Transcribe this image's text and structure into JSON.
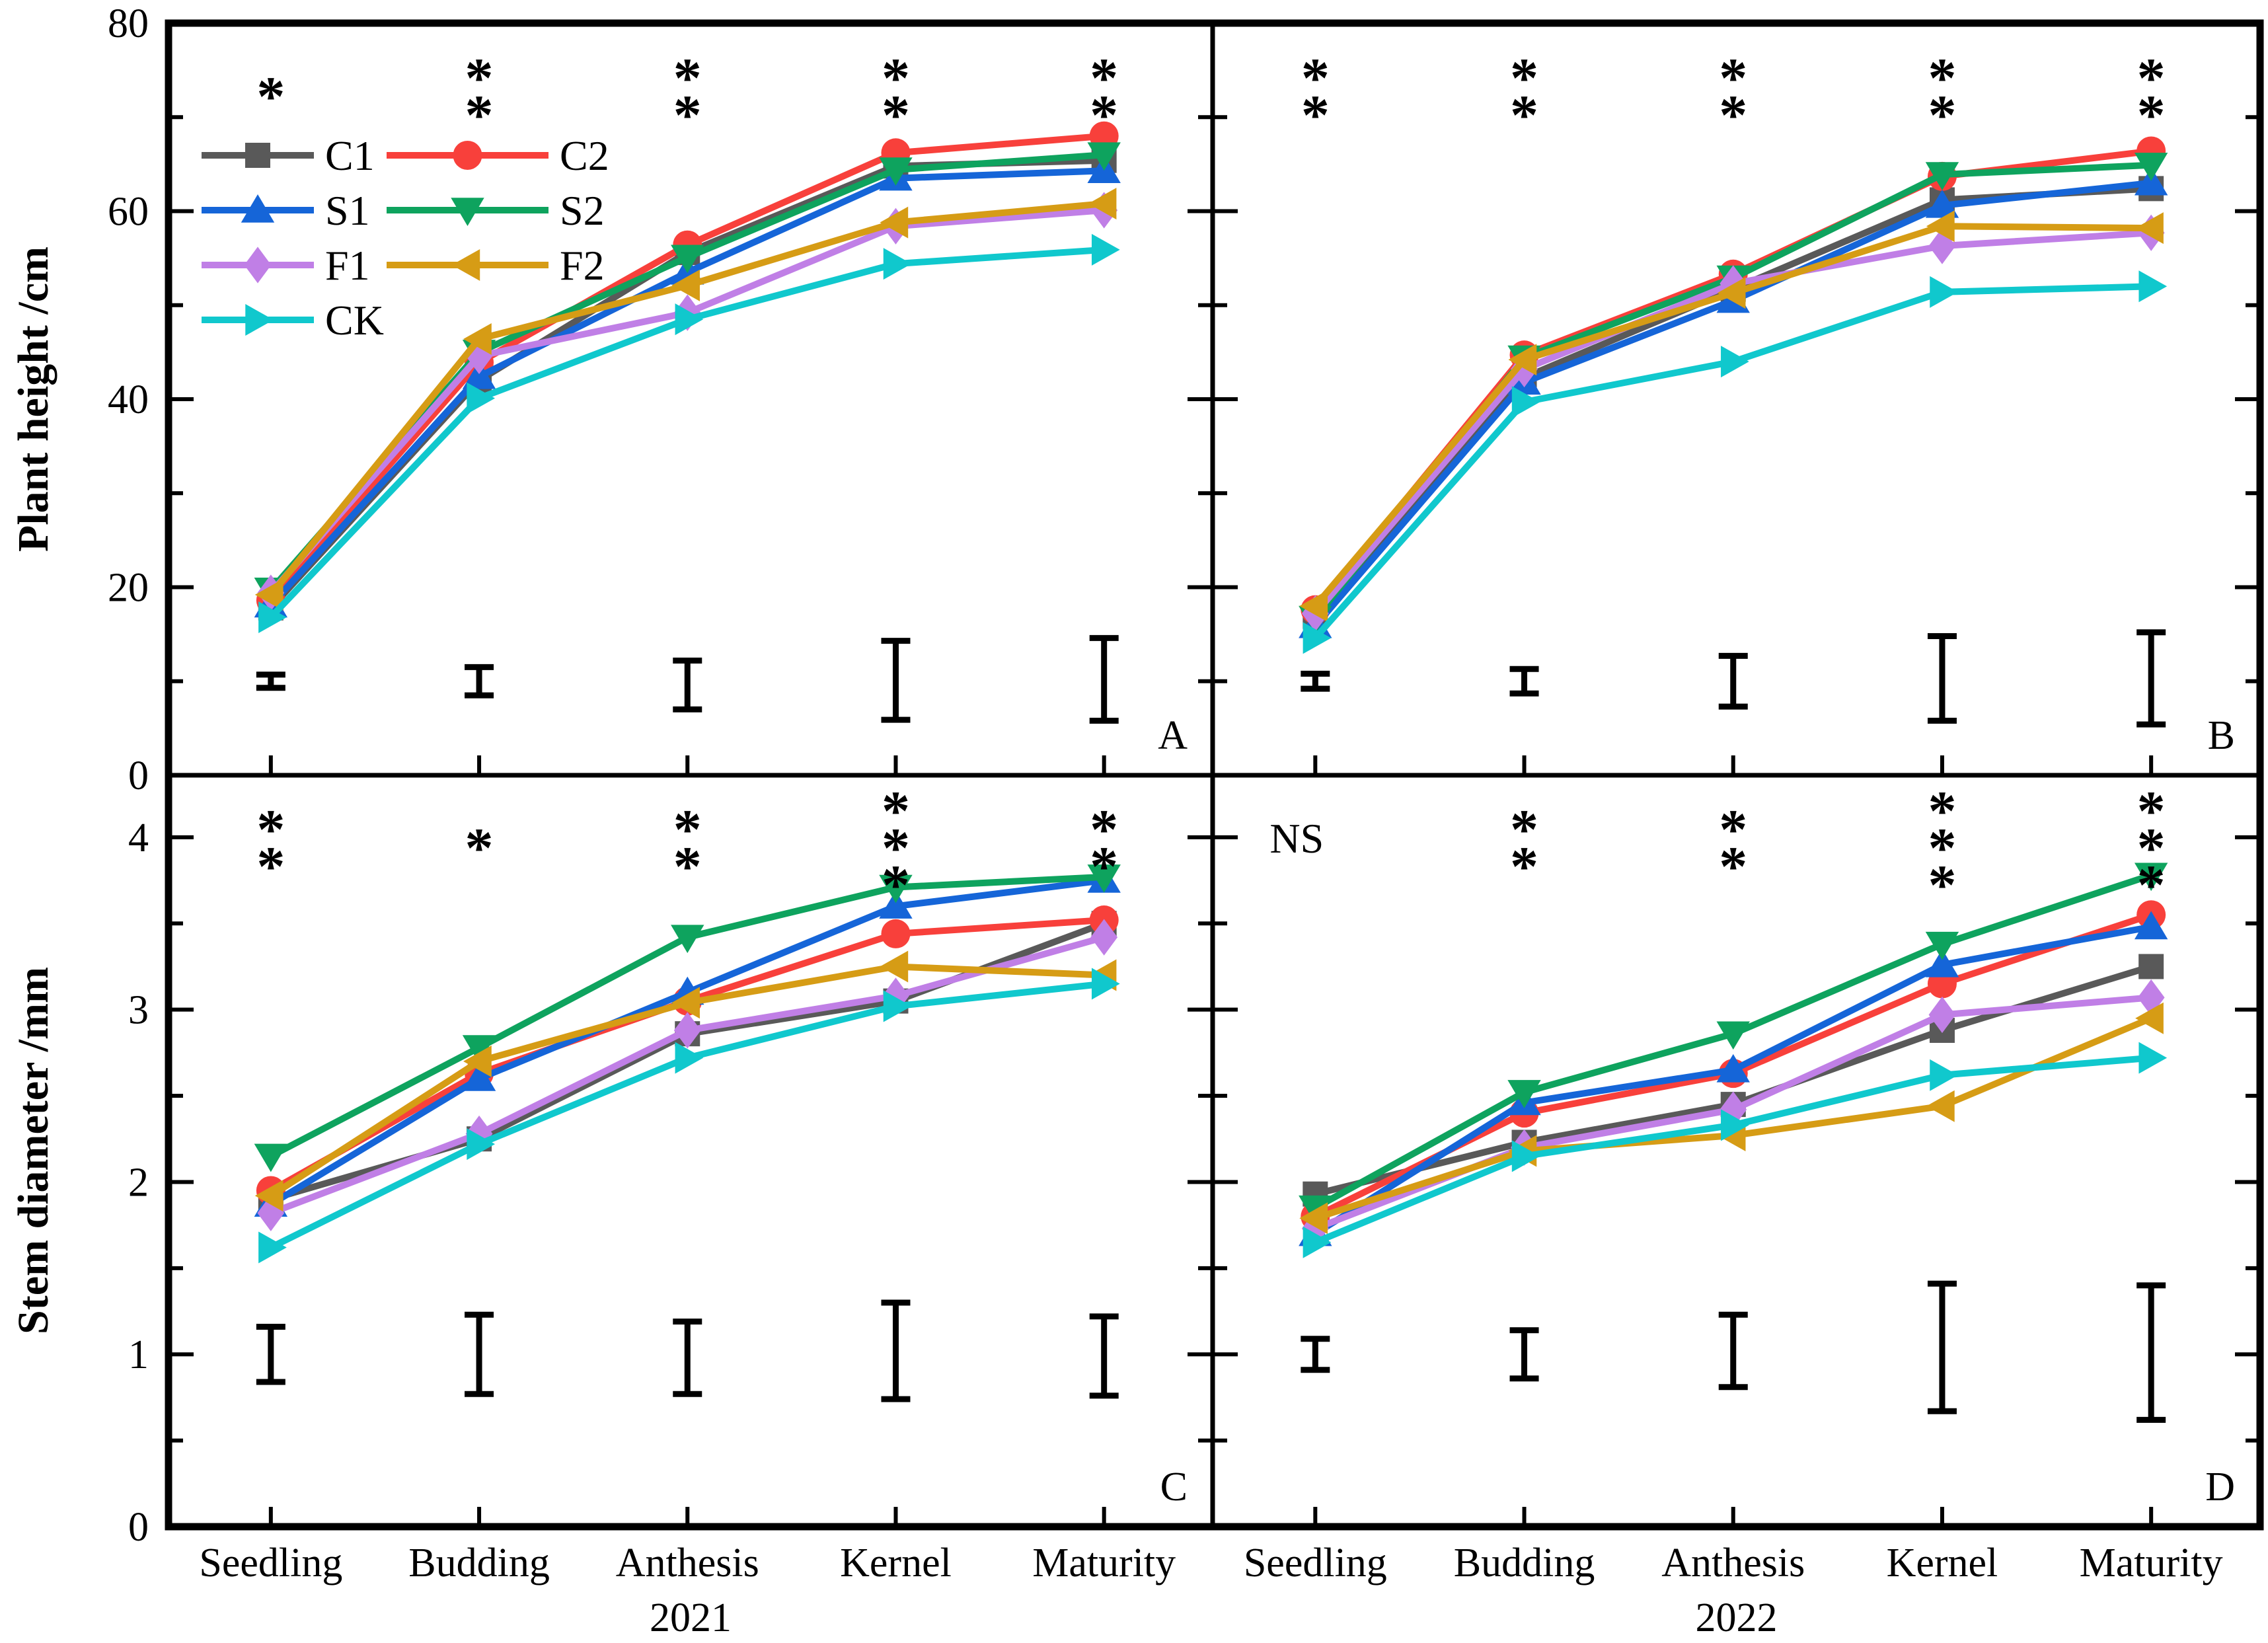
{
  "figure": {
    "background": "#ffffff",
    "axis_color": "#000000",
    "y_axis_top": {
      "label": "Plant height /cm",
      "major_ticks": [
        0,
        20,
        40,
        60,
        80
      ],
      "minor_ticks": [
        10,
        30,
        50,
        70
      ],
      "max": 80
    },
    "y_axis_bottom": {
      "label": "Stem diameter /mm",
      "major_ticks": [
        0,
        1,
        2,
        3,
        4
      ],
      "minor_ticks": [
        0.5,
        1.5,
        2.5,
        3.5
      ],
      "max": 4.36
    },
    "x_categories": [
      "Seedling",
      "Budding",
      "Anthesis",
      "Kernel",
      "Maturity"
    ],
    "year_left": "2021",
    "year_right": "2022",
    "panel_letters": [
      "A",
      "B",
      "C",
      "D"
    ]
  },
  "legend": {
    "location": "top-left of panel A",
    "column1": [
      "C1",
      "S1",
      "F1",
      "CK"
    ],
    "column2": [
      "C2",
      "S2",
      "F2"
    ]
  },
  "series_style": {
    "C1": {
      "label": "C1",
      "color": "#595959",
      "marker": "square"
    },
    "C2": {
      "label": "C2",
      "color": "#F8403B",
      "marker": "circle"
    },
    "S1": {
      "label": "S1",
      "color": "#1565D8",
      "marker": "triangle-up"
    },
    "S2": {
      "label": "S2",
      "color": "#0EA35E",
      "marker": "triangle-down"
    },
    "F1": {
      "label": "F1",
      "color": "#C07FE6",
      "marker": "diamond"
    },
    "F2": {
      "label": "F2",
      "color": "#D69C15",
      "marker": "triangle-left"
    },
    "CK": {
      "label": "CK",
      "color": "#10C8CD",
      "marker": "triangle-right"
    }
  },
  "chart_data": [
    {
      "type": "line",
      "panel": "A",
      "year": "2021",
      "ylabel": "Plant height /cm",
      "ylim": [
        0,
        80
      ],
      "categories": [
        "Seedling",
        "Budding",
        "Anthesis",
        "Kernel",
        "Maturity"
      ],
      "series": [
        {
          "name": "C1",
          "values": [
            17.8,
            42.0,
            55.6,
            64.8,
            65.4
          ]
        },
        {
          "name": "C2",
          "values": [
            18.6,
            43.9,
            56.4,
            66.2,
            68.0
          ]
        },
        {
          "name": "S1",
          "values": [
            18.1,
            42.4,
            53.5,
            63.5,
            64.3
          ]
        },
        {
          "name": "S2",
          "values": [
            19.7,
            45.0,
            55.1,
            64.4,
            66.0
          ]
        },
        {
          "name": "F1",
          "values": [
            19.4,
            44.6,
            49.2,
            58.4,
            60.1
          ]
        },
        {
          "name": "F2",
          "values": [
            19.2,
            46.4,
            52.1,
            58.8,
            60.8
          ]
        },
        {
          "name": "CK",
          "values": [
            16.8,
            40.1,
            48.5,
            54.4,
            55.9
          ]
        }
      ],
      "significance": [
        "*",
        "**",
        "**",
        "**",
        "**"
      ],
      "error_bars": [
        {
          "center": 10,
          "half": 0.7
        },
        {
          "center": 10,
          "half": 1.5
        },
        {
          "center": 9.6,
          "half": 2.6
        },
        {
          "center": 10.1,
          "half": 4.2
        },
        {
          "center": 10.2,
          "half": 4.4
        }
      ]
    },
    {
      "type": "line",
      "panel": "B",
      "year": "2022",
      "ylabel": "Plant height /cm",
      "ylim": [
        0,
        80
      ],
      "categories": [
        "Seedling",
        "Budding",
        "Anthesis",
        "Kernel",
        "Maturity"
      ],
      "series": [
        {
          "name": "C1",
          "values": [
            16.9,
            42.3,
            51.7,
            61.2,
            62.4
          ]
        },
        {
          "name": "C2",
          "values": [
            17.6,
            44.7,
            53.3,
            63.7,
            66.4
          ]
        },
        {
          "name": "S1",
          "values": [
            15.9,
            41.8,
            50.5,
            60.6,
            63.0
          ]
        },
        {
          "name": "S2",
          "values": [
            16.7,
            44.4,
            52.9,
            63.9,
            64.9
          ]
        },
        {
          "name": "F1",
          "values": [
            17.2,
            43.2,
            52.3,
            56.3,
            57.7
          ]
        },
        {
          "name": "F2",
          "values": [
            18.0,
            44.2,
            51.3,
            58.4,
            58.2
          ]
        },
        {
          "name": "CK",
          "values": [
            14.6,
            39.7,
            44.0,
            51.4,
            52.0
          ]
        }
      ],
      "significance": [
        "**",
        "**",
        "**",
        "**",
        "**"
      ],
      "error_bars": [
        {
          "center": 10,
          "half": 0.8
        },
        {
          "center": 10,
          "half": 1.3
        },
        {
          "center": 10,
          "half": 2.7
        },
        {
          "center": 10.3,
          "half": 4.5
        },
        {
          "center": 10.3,
          "half": 4.9
        }
      ]
    },
    {
      "type": "line",
      "panel": "C",
      "year": "2021",
      "ylabel": "Stem diameter /mm",
      "ylim": [
        0,
        4.36
      ],
      "categories": [
        "Seedling",
        "Budding",
        "Anthesis",
        "Kernel",
        "Maturity"
      ],
      "series": [
        {
          "name": "C1",
          "values": [
            1.9,
            2.25,
            2.86,
            3.05,
            3.5
          ]
        },
        {
          "name": "C2",
          "values": [
            1.95,
            2.63,
            3.05,
            3.44,
            3.52
          ]
        },
        {
          "name": "S1",
          "values": [
            1.87,
            2.6,
            3.1,
            3.6,
            3.75
          ]
        },
        {
          "name": "S2",
          "values": [
            2.15,
            2.78,
            3.42,
            3.71,
            3.77
          ]
        },
        {
          "name": "F1",
          "values": [
            1.82,
            2.28,
            2.88,
            3.08,
            3.42
          ]
        },
        {
          "name": "F2",
          "values": [
            1.92,
            2.7,
            3.04,
            3.25,
            3.2
          ]
        },
        {
          "name": "CK",
          "values": [
            1.62,
            2.22,
            2.72,
            3.02,
            3.15
          ]
        }
      ],
      "significance": [
        "**",
        "*",
        "**",
        "***",
        "**"
      ],
      "error_bars": [
        {
          "center": 1.0,
          "half": 0.16
        },
        {
          "center": 1.0,
          "half": 0.23
        },
        {
          "center": 0.98,
          "half": 0.21
        },
        {
          "center": 1.02,
          "half": 0.28
        },
        {
          "center": 0.99,
          "half": 0.23
        }
      ]
    },
    {
      "type": "line",
      "panel": "D",
      "year": "2022",
      "ylabel": "Stem diameter /mm",
      "ylim": [
        0,
        4.36
      ],
      "categories": [
        "Seedling",
        "Budding",
        "Anthesis",
        "Kernel",
        "Maturity"
      ],
      "series": [
        {
          "name": "C1",
          "values": [
            1.93,
            2.23,
            2.45,
            2.88,
            3.25
          ]
        },
        {
          "name": "C2",
          "values": [
            1.8,
            2.4,
            2.63,
            3.15,
            3.55
          ]
        },
        {
          "name": "S1",
          "values": [
            1.7,
            2.46,
            2.65,
            3.26,
            3.48
          ]
        },
        {
          "name": "S2",
          "values": [
            1.85,
            2.52,
            2.86,
            3.38,
            3.78
          ]
        },
        {
          "name": "F1",
          "values": [
            1.73,
            2.2,
            2.42,
            2.97,
            3.07
          ]
        },
        {
          "name": "F2",
          "values": [
            1.79,
            2.18,
            2.27,
            2.44,
            2.95
          ]
        },
        {
          "name": "CK",
          "values": [
            1.65,
            2.15,
            2.33,
            2.62,
            2.72
          ]
        }
      ],
      "significance": [
        "NS",
        "**",
        "**",
        "***",
        "***"
      ],
      "error_bars": [
        {
          "center": 1.0,
          "half": 0.09
        },
        {
          "center": 1.0,
          "half": 0.14
        },
        {
          "center": 1.02,
          "half": 0.21
        },
        {
          "center": 1.04,
          "half": 0.37
        },
        {
          "center": 1.01,
          "half": 0.39
        }
      ]
    }
  ]
}
